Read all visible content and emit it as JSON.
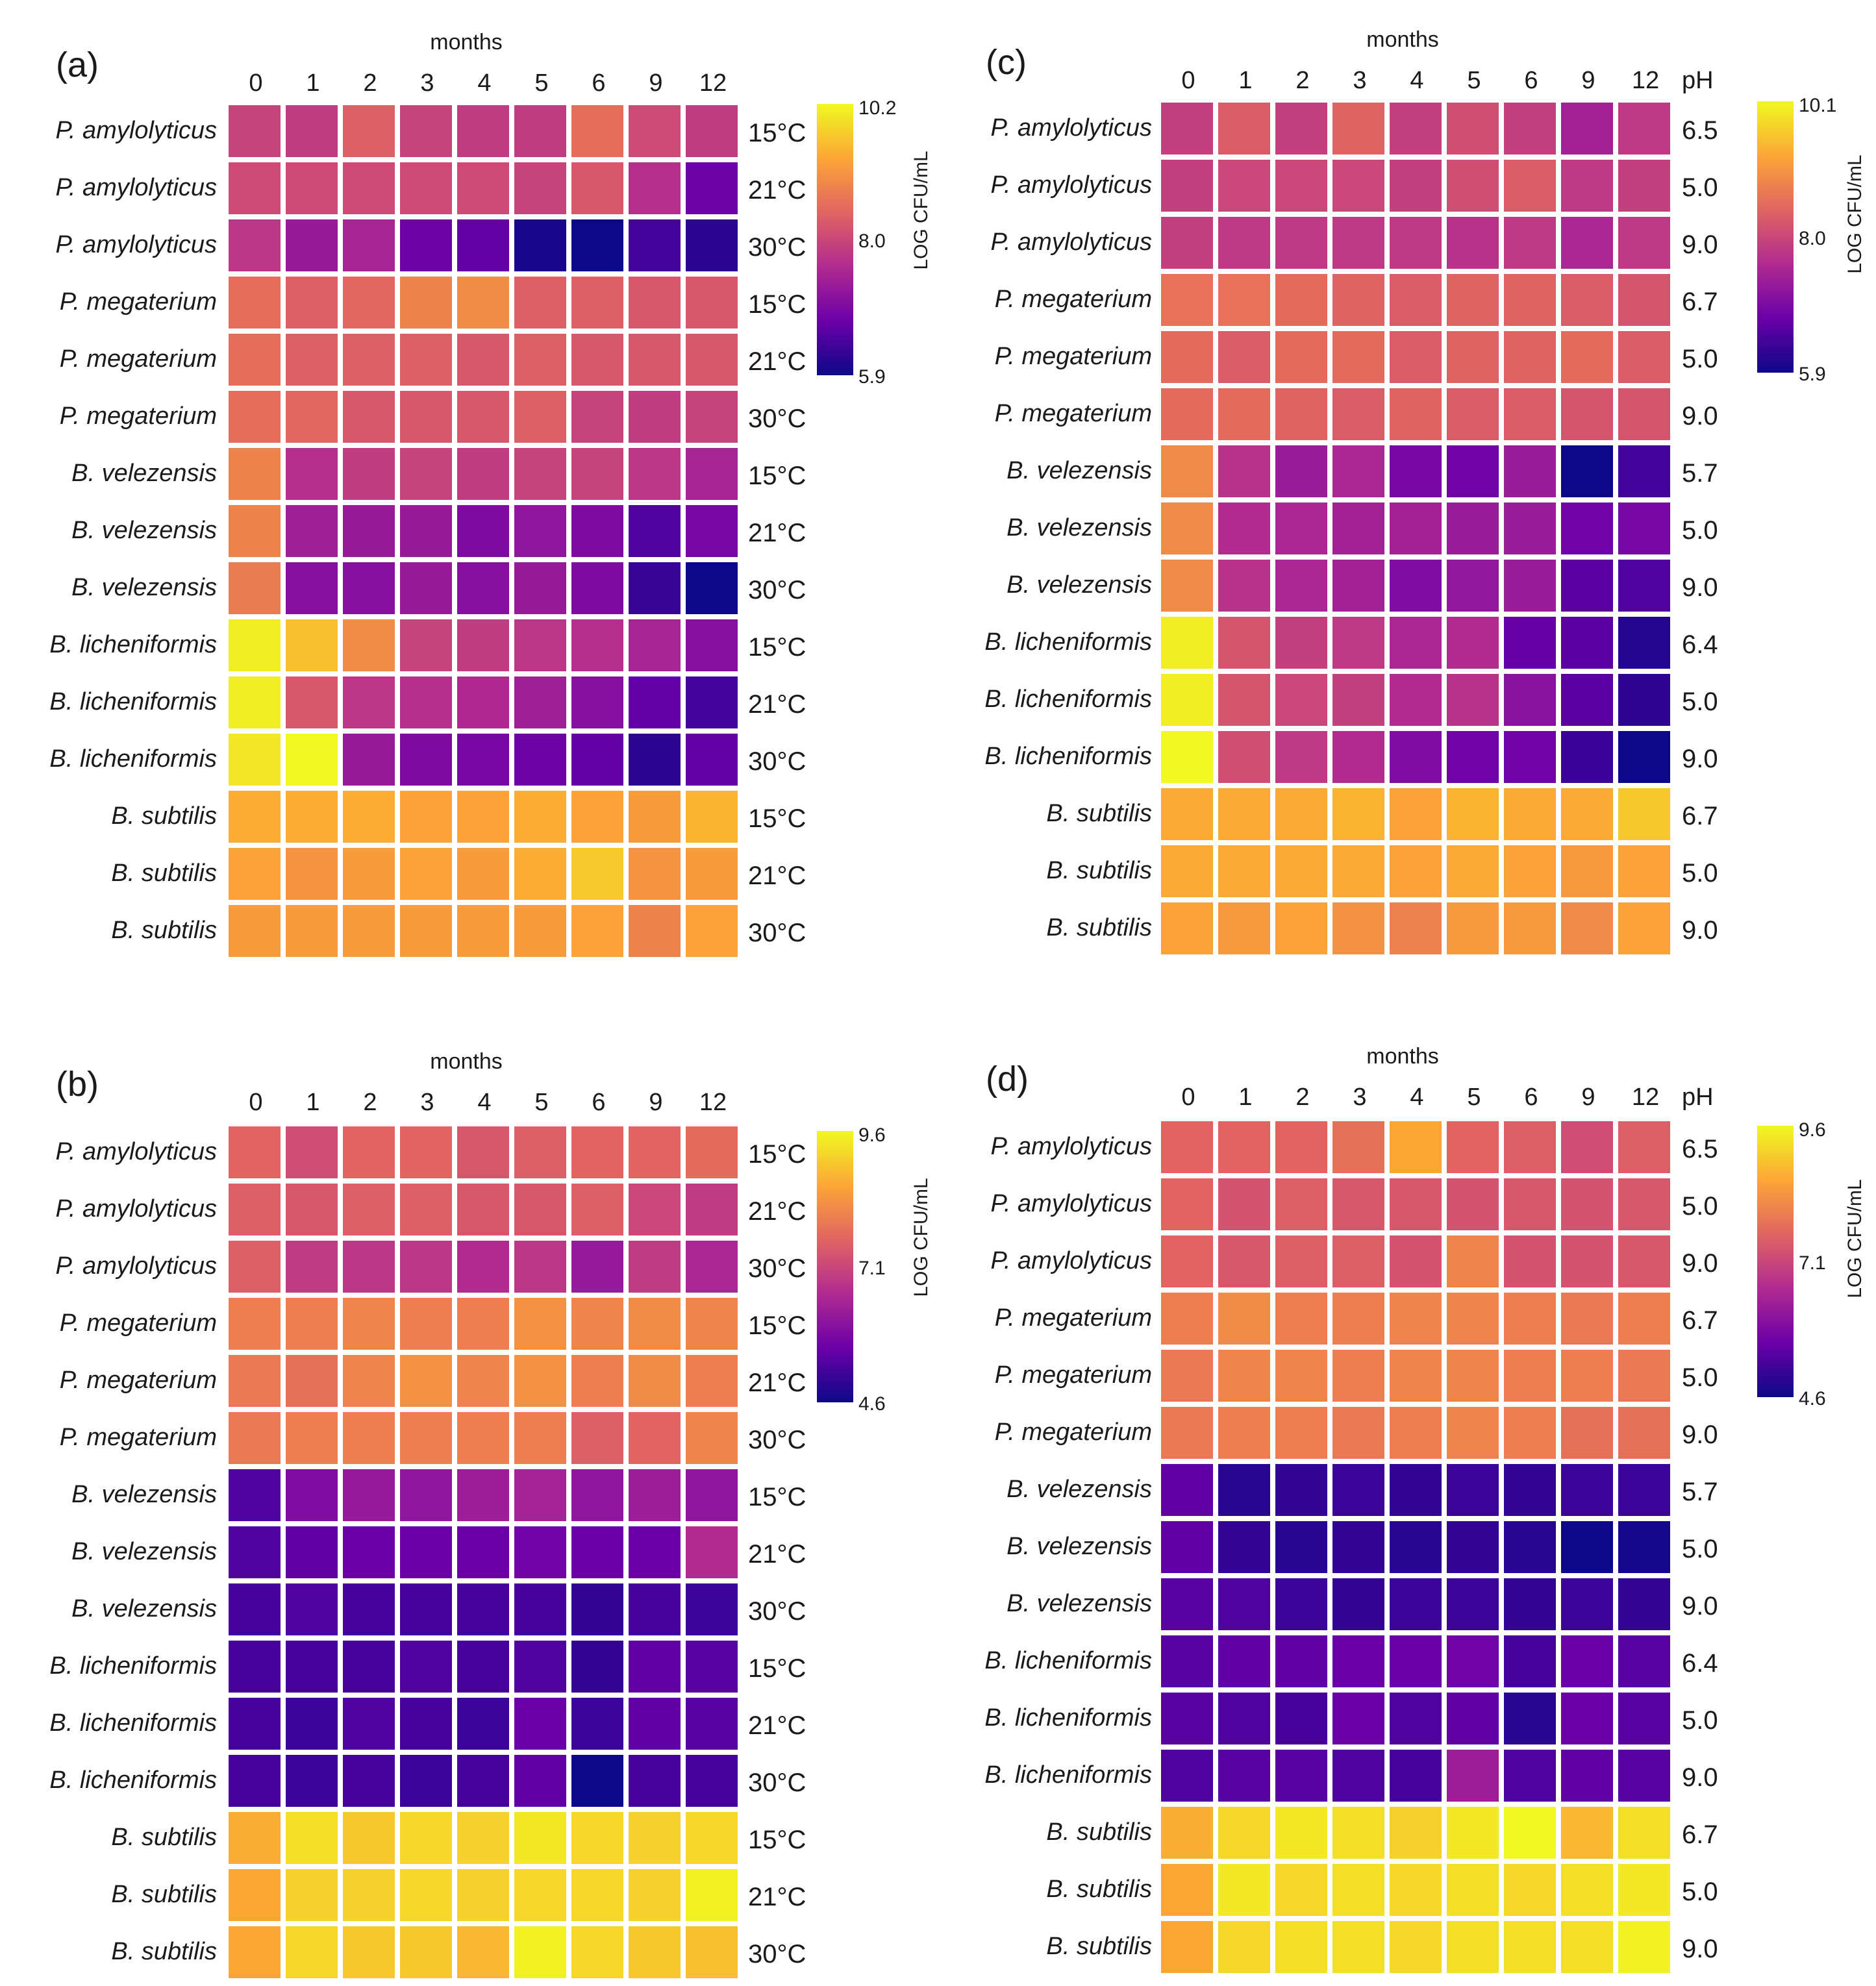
{
  "colormap": [
    "#0d0887",
    "#6a00a8",
    "#b12a90",
    "#e16462",
    "#fca636",
    "#f0f921"
  ],
  "chart_data": [
    {
      "type": "heatmap",
      "panel": "(a)",
      "xlabel": "months",
      "x": [
        "0",
        "1",
        "2",
        "3",
        "4",
        "5",
        "6",
        "9",
        "12"
      ],
      "rows": [
        "P. amylolyticus",
        "P. amylolyticus",
        "P. amylolyticus",
        "P. megaterium",
        "P. megaterium",
        "P. megaterium",
        "B. velezensis",
        "B. velezensis",
        "B. velezensis",
        "B. licheniformis",
        "B. licheniformis",
        "B. licheniformis",
        "B. subtilis",
        "B. subtilis",
        "B. subtilis"
      ],
      "conditions_header": "",
      "conditions": [
        "15°C",
        "21°C",
        "30°C",
        "15°C",
        "21°C",
        "30°C",
        "15°C",
        "21°C",
        "30°C",
        "15°C",
        "21°C",
        "30°C",
        "15°C",
        "21°C",
        "30°C"
      ],
      "colorbar": {
        "label": "LOG CFU/mL",
        "min": 5.9,
        "max": 10.2,
        "ticks": [
          "10.2",
          "8.0",
          "5.9"
        ]
      },
      "values": [
        [
          8.0,
          7.9,
          8.4,
          8.0,
          7.9,
          7.9,
          8.6,
          8.1,
          7.9
        ],
        [
          8.1,
          8.1,
          8.1,
          8.1,
          8.1,
          8.0,
          8.3,
          7.7,
          6.8
        ],
        [
          7.8,
          7.3,
          7.5,
          6.8,
          6.7,
          6.0,
          5.9,
          6.4,
          6.2
        ],
        [
          8.6,
          8.4,
          8.5,
          8.9,
          9.0,
          8.4,
          8.4,
          8.3,
          8.3
        ],
        [
          8.6,
          8.4,
          8.4,
          8.4,
          8.3,
          8.4,
          8.3,
          8.3,
          8.3
        ],
        [
          8.6,
          8.5,
          8.3,
          8.3,
          8.3,
          8.4,
          8.0,
          7.9,
          8.0
        ],
        [
          8.9,
          7.7,
          7.9,
          8.0,
          7.9,
          8.0,
          8.0,
          7.8,
          7.5
        ],
        [
          8.9,
          7.4,
          7.3,
          7.3,
          7.0,
          7.2,
          7.0,
          6.5,
          6.9
        ],
        [
          8.8,
          7.1,
          7.1,
          7.3,
          7.1,
          7.3,
          7.0,
          6.3,
          5.9
        ],
        [
          10.1,
          9.6,
          9.0,
          8.0,
          7.9,
          7.8,
          7.7,
          7.5,
          7.1
        ],
        [
          10.1,
          8.3,
          7.8,
          7.7,
          7.6,
          7.4,
          7.1,
          6.7,
          6.4
        ],
        [
          10.0,
          10.2,
          7.3,
          7.0,
          6.9,
          6.8,
          6.7,
          6.2,
          6.7
        ],
        [
          9.4,
          9.4,
          9.4,
          9.3,
          9.3,
          9.4,
          9.3,
          9.2,
          9.5
        ],
        [
          9.3,
          9.1,
          9.2,
          9.3,
          9.2,
          9.4,
          9.7,
          9.1,
          9.2
        ],
        [
          9.2,
          9.2,
          9.2,
          9.2,
          9.2,
          9.2,
          9.3,
          8.9,
          9.3
        ]
      ]
    },
    {
      "type": "heatmap",
      "panel": "(b)",
      "xlabel": "months",
      "x": [
        "0",
        "1",
        "2",
        "3",
        "4",
        "5",
        "6",
        "9",
        "12"
      ],
      "rows": [
        "P. amylolyticus",
        "P. amylolyticus",
        "P. amylolyticus",
        "P. megaterium",
        "P. megaterium",
        "P. megaterium",
        "B. velezensis",
        "B. velezensis",
        "B. velezensis",
        "B. licheniformis",
        "B. licheniformis",
        "B. licheniformis",
        "B. subtilis",
        "B. subtilis",
        "B. subtilis"
      ],
      "conditions_header": "",
      "conditions": [
        "15°C",
        "21°C",
        "30°C",
        "15°C",
        "21°C",
        "30°C",
        "15°C",
        "21°C",
        "30°C",
        "15°C",
        "21°C",
        "30°C",
        "15°C",
        "21°C",
        "30°C"
      ],
      "colorbar": {
        "label": "LOG CFU/mL",
        "min": 4.6,
        "max": 9.6,
        "ticks": [
          "9.6",
          "7.1",
          "4.6"
        ]
      },
      "values": [
        [
          7.6,
          7.2,
          7.6,
          7.6,
          7.4,
          7.5,
          7.6,
          7.6,
          7.7
        ],
        [
          7.5,
          7.4,
          7.5,
          7.5,
          7.4,
          7.4,
          7.5,
          7.1,
          6.9
        ],
        [
          7.5,
          6.9,
          6.8,
          6.8,
          6.6,
          6.8,
          6.2,
          6.9,
          6.5
        ],
        [
          8.0,
          8.0,
          8.1,
          8.0,
          8.0,
          8.3,
          8.1,
          8.2,
          8.1
        ],
        [
          7.9,
          7.8,
          8.1,
          8.3,
          8.1,
          8.3,
          8.0,
          8.2,
          8.0
        ],
        [
          7.9,
          8.0,
          8.0,
          8.0,
          8.0,
          8.0,
          7.5,
          7.6,
          8.1
        ],
        [
          5.3,
          5.9,
          6.2,
          6.1,
          6.3,
          6.4,
          6.1,
          6.3,
          6.1
        ],
        [
          5.3,
          5.5,
          5.6,
          5.6,
          5.6,
          5.7,
          5.6,
          5.6,
          6.6
        ],
        [
          5.2,
          5.3,
          5.2,
          5.2,
          5.2,
          5.2,
          5.0,
          5.2,
          5.1
        ],
        [
          5.2,
          5.2,
          5.2,
          5.3,
          5.2,
          5.3,
          5.0,
          5.5,
          5.4
        ],
        [
          5.2,
          5.1,
          5.3,
          5.2,
          5.1,
          5.6,
          5.1,
          5.5,
          5.4
        ],
        [
          5.2,
          5.1,
          5.2,
          5.1,
          5.2,
          5.5,
          4.6,
          5.2,
          5.2
        ],
        [
          8.7,
          9.3,
          9.0,
          9.2,
          9.1,
          9.4,
          9.2,
          9.1,
          9.2
        ],
        [
          8.6,
          9.1,
          9.1,
          9.2,
          9.1,
          9.2,
          9.2,
          9.1,
          9.5
        ],
        [
          8.6,
          9.2,
          9.0,
          9.0,
          8.8,
          9.5,
          9.2,
          9.0,
          8.9
        ]
      ]
    },
    {
      "type": "heatmap",
      "panel": "(c)",
      "xlabel": "months",
      "x": [
        "0",
        "1",
        "2",
        "3",
        "4",
        "5",
        "6",
        "9",
        "12"
      ],
      "rows": [
        "P. amylolyticus",
        "P. amylolyticus",
        "P. amylolyticus",
        "P. megaterium",
        "P. megaterium",
        "P. megaterium",
        "B. velezensis",
        "B. velezensis",
        "B. velezensis",
        "B. licheniformis",
        "B. licheniformis",
        "B. licheniformis",
        "B. subtilis",
        "B. subtilis",
        "B. subtilis"
      ],
      "conditions_header": "pH",
      "conditions": [
        "6.5",
        "5.0",
        "9.0",
        "6.7",
        "5.0",
        "9.0",
        "5.7",
        "5.0",
        "9.0",
        "6.4",
        "5.0",
        "9.0",
        "6.7",
        "5.0",
        "9.0"
      ],
      "colorbar": {
        "label": "LOG CFU/mL",
        "min": 5.9,
        "max": 10.1,
        "ticks": [
          "10.1",
          "8.0",
          "5.9"
        ]
      },
      "values": [
        [
          7.9,
          8.3,
          7.9,
          8.4,
          7.9,
          8.1,
          7.9,
          7.4,
          7.8
        ],
        [
          7.9,
          8.0,
          8.0,
          8.0,
          7.9,
          8.1,
          8.3,
          7.8,
          7.9
        ],
        [
          7.9,
          7.8,
          7.8,
          7.8,
          7.8,
          7.7,
          7.8,
          7.5,
          7.8
        ],
        [
          8.6,
          8.6,
          8.5,
          8.4,
          8.3,
          8.4,
          8.4,
          8.3,
          8.2
        ],
        [
          8.5,
          8.3,
          8.5,
          8.5,
          8.3,
          8.4,
          8.4,
          8.5,
          8.3
        ],
        [
          8.5,
          8.5,
          8.4,
          8.3,
          8.4,
          8.3,
          8.3,
          8.2,
          8.2
        ],
        [
          8.9,
          7.7,
          7.3,
          7.5,
          6.9,
          6.8,
          7.3,
          5.9,
          6.4
        ],
        [
          8.9,
          7.6,
          7.5,
          7.4,
          7.4,
          7.3,
          7.3,
          6.8,
          6.9
        ],
        [
          8.9,
          7.7,
          7.5,
          7.4,
          7.0,
          7.2,
          7.3,
          6.6,
          6.5
        ],
        [
          10.0,
          8.2,
          7.9,
          7.8,
          7.5,
          7.6,
          6.7,
          6.6,
          6.1
        ],
        [
          10.0,
          8.2,
          8.0,
          7.9,
          7.6,
          7.7,
          7.1,
          6.6,
          6.2
        ],
        [
          10.1,
          8.1,
          7.8,
          7.6,
          7.0,
          6.8,
          6.8,
          6.3,
          5.9
        ],
        [
          9.3,
          9.3,
          9.3,
          9.4,
          9.2,
          9.4,
          9.3,
          9.3,
          9.6
        ],
        [
          9.3,
          9.3,
          9.3,
          9.3,
          9.2,
          9.3,
          9.2,
          9.1,
          9.2
        ],
        [
          9.2,
          9.1,
          9.2,
          9.0,
          8.8,
          9.1,
          9.1,
          8.9,
          9.2
        ]
      ]
    },
    {
      "type": "heatmap",
      "panel": "(d)",
      "xlabel": "months",
      "x": [
        "0",
        "1",
        "2",
        "3",
        "4",
        "5",
        "6",
        "9",
        "12"
      ],
      "rows": [
        "P. amylolyticus",
        "P. amylolyticus",
        "P. amylolyticus",
        "P. megaterium",
        "P. megaterium",
        "P. megaterium",
        "B. velezensis",
        "B. velezensis",
        "B. velezensis",
        "B. licheniformis",
        "B. licheniformis",
        "B. licheniformis",
        "B. subtilis",
        "B. subtilis",
        "B. subtilis"
      ],
      "conditions_header": "pH",
      "conditions": [
        "6.5",
        "5.0",
        "9.0",
        "6.7",
        "5.0",
        "9.0",
        "5.7",
        "5.0",
        "9.0",
        "6.4",
        "5.0",
        "9.0",
        "6.7",
        "5.0",
        "9.0"
      ],
      "colorbar": {
        "label": "LOG CFU/mL",
        "min": 4.6,
        "max": 9.6,
        "ticks": [
          "9.6",
          "7.1",
          "4.6"
        ]
      },
      "values": [
        [
          7.6,
          7.6,
          7.6,
          7.8,
          8.6,
          7.6,
          7.5,
          7.2,
          7.5
        ],
        [
          7.6,
          7.3,
          7.5,
          7.4,
          7.4,
          7.3,
          7.4,
          7.3,
          7.4
        ],
        [
          7.6,
          7.4,
          7.5,
          7.5,
          7.3,
          8.1,
          7.3,
          7.3,
          7.4
        ],
        [
          8.0,
          8.2,
          8.0,
          8.0,
          8.1,
          8.1,
          8.0,
          7.9,
          8.0
        ],
        [
          7.9,
          8.1,
          8.1,
          8.0,
          8.1,
          8.1,
          8.0,
          8.0,
          7.9
        ],
        [
          7.9,
          8.0,
          8.0,
          7.9,
          8.0,
          8.1,
          8.0,
          7.8,
          7.8
        ],
        [
          5.5,
          4.9,
          5.0,
          5.1,
          5.0,
          5.1,
          5.0,
          5.1,
          5.1
        ],
        [
          5.5,
          5.0,
          4.9,
          5.0,
          4.9,
          5.0,
          4.9,
          4.6,
          4.7
        ],
        [
          5.4,
          5.3,
          5.1,
          5.0,
          5.1,
          5.1,
          5.0,
          5.1,
          5.0
        ],
        [
          5.4,
          5.5,
          5.5,
          5.6,
          5.6,
          5.7,
          5.2,
          5.6,
          5.4
        ],
        [
          5.4,
          5.3,
          5.2,
          5.6,
          5.3,
          5.5,
          4.9,
          5.6,
          5.4
        ],
        [
          5.3,
          5.4,
          5.4,
          5.3,
          5.2,
          6.3,
          5.3,
          5.5,
          5.4
        ],
        [
          8.7,
          9.2,
          9.4,
          9.3,
          9.1,
          9.4,
          9.6,
          8.8,
          9.3
        ],
        [
          8.6,
          9.4,
          9.2,
          9.3,
          9.2,
          9.3,
          9.2,
          9.3,
          9.4
        ],
        [
          8.6,
          9.2,
          9.3,
          9.3,
          9.2,
          9.3,
          9.3,
          9.3,
          9.5
        ]
      ]
    }
  ]
}
